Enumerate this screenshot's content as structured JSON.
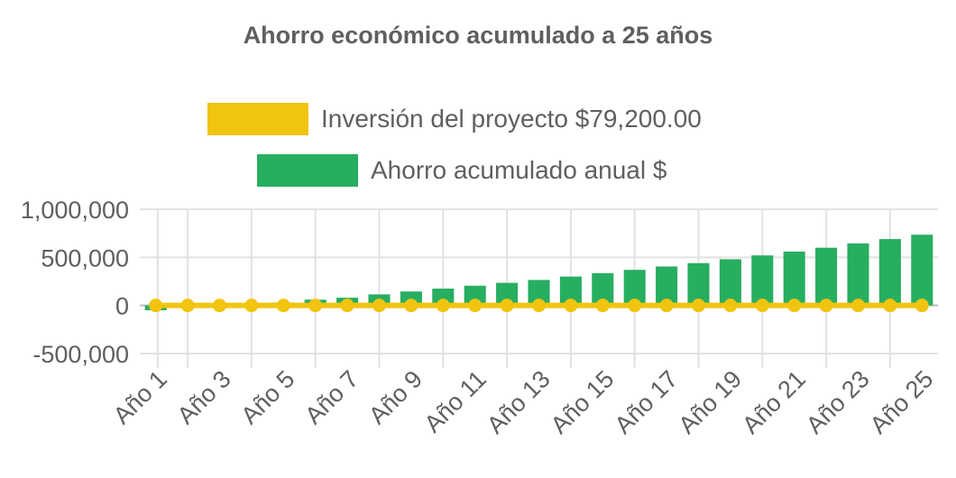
{
  "chart_data": {
    "type": "bar",
    "title": "Ahorro económico acumulado a 25 años",
    "xlabel": "",
    "ylabel": "",
    "ylim": [
      -500000,
      1000000
    ],
    "y_ticks": [
      1000000,
      500000,
      0,
      -500000
    ],
    "y_tick_labels": [
      "1,000,000",
      "500,000",
      "0",
      "-500,000"
    ],
    "categories": [
      "Año 1",
      "Año 2",
      "Año 3",
      "Año 4",
      "Año 5",
      "Año 6",
      "Año 7",
      "Año 8",
      "Año 9",
      "Año 10",
      "Año 11",
      "Año 12",
      "Año 13",
      "Año 14",
      "Año 15",
      "Año 16",
      "Año 17",
      "Año 18",
      "Año 19",
      "Año 20",
      "Año 21",
      "Año 22",
      "Año 23",
      "Año 24",
      "Año 25"
    ],
    "x_tick_labels": [
      "Año 1",
      "Año 3",
      "Año 5",
      "Año 7",
      "Año 9",
      "Año 11",
      "Año 13",
      "Año 15",
      "Año 17",
      "Año 19",
      "Año 21",
      "Año 23",
      "Año 25"
    ],
    "grid": true,
    "legend_position": "top",
    "series": [
      {
        "name": "Inversión del proyecto $79,200.00",
        "kind": "line",
        "color": "#f1c40f",
        "values": [
          0,
          0,
          0,
          0,
          0,
          0,
          0,
          0,
          0,
          0,
          0,
          0,
          0,
          0,
          0,
          0,
          0,
          0,
          0,
          0,
          0,
          0,
          0,
          0,
          0
        ]
      },
      {
        "name": "Ahorro acumulado anual $",
        "kind": "bar",
        "color": "#27ae60",
        "values": [
          -50000,
          -5000,
          5000,
          15000,
          30000,
          60000,
          80000,
          115000,
          145000,
          175000,
          205000,
          235000,
          265000,
          300000,
          335000,
          370000,
          405000,
          440000,
          480000,
          520000,
          560000,
          600000,
          645000,
          690000,
          735000
        ]
      }
    ]
  }
}
